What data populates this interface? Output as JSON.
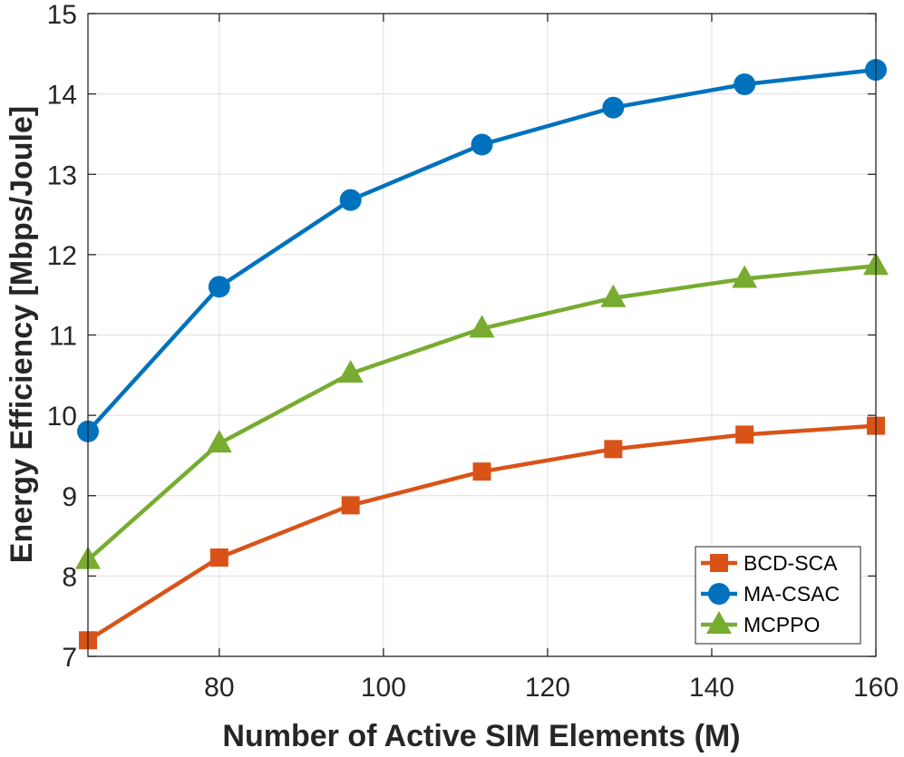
{
  "chart_data": {
    "type": "line",
    "xlabel": "Number of Active SIM Elements (M)",
    "ylabel": "Energy Efficiency [Mbps/Joule]",
    "x": [
      64,
      80,
      96,
      112,
      128,
      144,
      160
    ],
    "xlim": [
      64,
      160
    ],
    "ylim": [
      7,
      15
    ],
    "xticks": [
      80,
      100,
      120,
      140,
      160
    ],
    "yticks": [
      7,
      8,
      9,
      10,
      11,
      12,
      13,
      14,
      15
    ],
    "grid": true,
    "legend_position": "bottom-right",
    "series": [
      {
        "name": "BCD-SCA",
        "color": "#d95319",
        "marker": "square",
        "values": [
          7.2,
          8.23,
          8.88,
          9.3,
          9.58,
          9.76,
          9.87
        ]
      },
      {
        "name": "MA-CSAC",
        "color": "#0072bd",
        "marker": "circle",
        "values": [
          9.8,
          11.6,
          12.68,
          13.37,
          13.83,
          14.12,
          14.3
        ]
      },
      {
        "name": "MCPPO",
        "color": "#77ac30",
        "marker": "triangle",
        "values": [
          8.2,
          9.65,
          10.52,
          11.08,
          11.46,
          11.7,
          11.86
        ]
      }
    ]
  }
}
